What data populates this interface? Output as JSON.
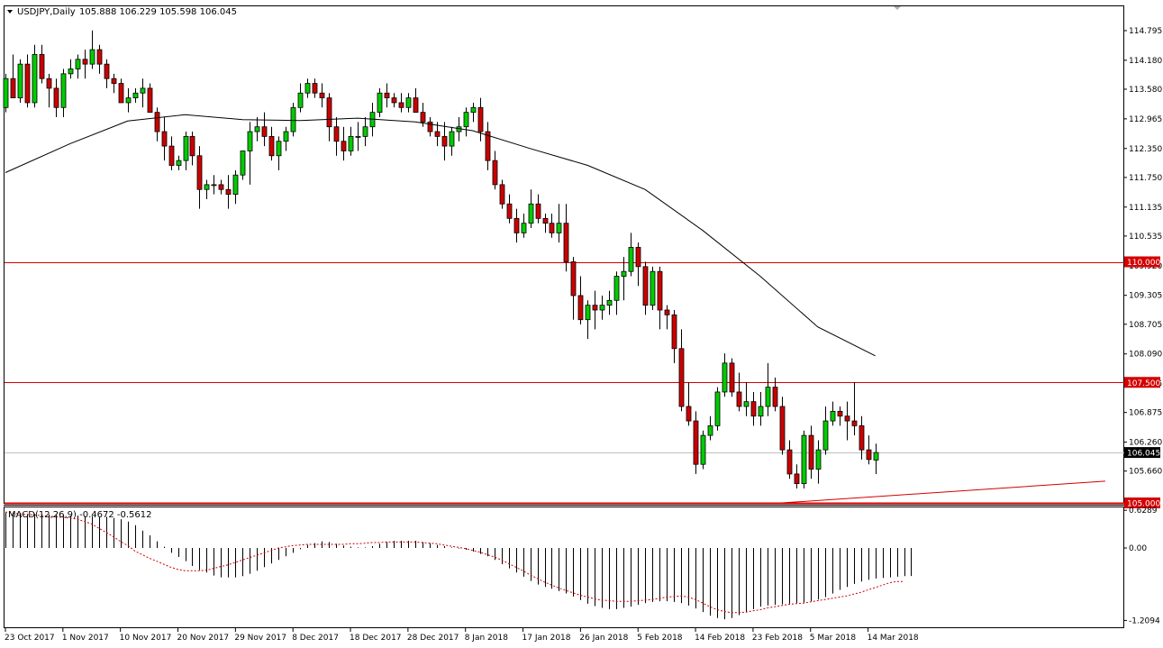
{
  "header": {
    "symbol_label": "USDJPY,Daily",
    "ohlc_values": "105.888 106.229 105.598 106.045"
  },
  "macd_header": {
    "label": "MACD(12,26,9) -0.4672 -0.5612"
  },
  "colors": {
    "up": "#00cc00",
    "down": "#cc0000",
    "outline": "#000000",
    "ma": "#000000",
    "hline": "#d40000",
    "trendline": "#d40000",
    "price_marker": "#000000",
    "signal": "#cc0000"
  },
  "chart_data": [
    {
      "type": "candlestick",
      "title": "USDJPY,Daily",
      "y_range": [
        105.0,
        115.0
      ],
      "y_tick_labels": [
        "114.795",
        "114.180",
        "113.580",
        "112.965",
        "112.350",
        "111.750",
        "111.135",
        "110.535",
        "109.920",
        "109.305",
        "108.705",
        "108.090",
        "107.475",
        "106.875",
        "106.260",
        "105.660"
      ],
      "x_tick_labels": [
        "23 Oct 2017",
        "1 Nov 2017",
        "10 Nov 2017",
        "20 Nov 2017",
        "29 Nov 2017",
        "8 Dec 2017",
        "18 Dec 2017",
        "28 Dec 2017",
        "8 Jan 2018",
        "17 Jan 2018",
        "26 Jan 2018",
        "5 Feb 2018",
        "14 Feb 2018",
        "23 Feb 2018",
        "5 Mar 2018",
        "14 Mar 2018"
      ],
      "x_tick_index": [
        0,
        8,
        16,
        24,
        32,
        40,
        48,
        56,
        64,
        72,
        80,
        88,
        96,
        104,
        112,
        120
      ],
      "ohlc": [
        [
          113.2,
          113.9,
          113.1,
          113.8
        ],
        [
          113.8,
          114.3,
          113.4,
          113.4
        ],
        [
          113.4,
          114.2,
          113.3,
          114.1
        ],
        [
          114.1,
          114.3,
          113.2,
          113.3
        ],
        [
          113.3,
          114.5,
          113.2,
          114.3
        ],
        [
          114.3,
          114.5,
          113.7,
          113.8
        ],
        [
          113.8,
          113.9,
          113.2,
          113.6
        ],
        [
          113.6,
          113.8,
          113.0,
          113.2
        ],
        [
          113.2,
          114.0,
          113.0,
          113.9
        ],
        [
          113.9,
          114.2,
          113.8,
          114.0
        ],
        [
          114.0,
          114.3,
          113.8,
          114.2
        ],
        [
          114.2,
          114.4,
          113.8,
          114.1
        ],
        [
          114.1,
          114.8,
          114.0,
          114.4
        ],
        [
          114.4,
          114.5,
          113.9,
          114.1
        ],
        [
          114.1,
          114.2,
          113.6,
          113.8
        ],
        [
          113.8,
          113.9,
          113.5,
          113.7
        ],
        [
          113.7,
          113.8,
          113.3,
          113.3
        ],
        [
          113.3,
          113.6,
          113.1,
          113.4
        ],
        [
          113.4,
          113.6,
          113.3,
          113.5
        ],
        [
          113.5,
          113.8,
          113.2,
          113.6
        ],
        [
          113.6,
          113.7,
          113.1,
          113.1
        ],
        [
          113.1,
          113.2,
          112.5,
          112.7
        ],
        [
          112.7,
          113.0,
          112.1,
          112.4
        ],
        [
          112.4,
          112.6,
          111.9,
          112.0
        ],
        [
          112.0,
          112.2,
          111.9,
          112.1
        ],
        [
          112.1,
          112.7,
          111.9,
          112.6
        ],
        [
          112.6,
          112.7,
          112.0,
          112.2
        ],
        [
          112.2,
          112.4,
          111.1,
          111.5
        ],
        [
          111.5,
          111.7,
          111.3,
          111.6
        ],
        [
          111.6,
          111.8,
          111.4,
          111.6
        ],
        [
          111.6,
          111.7,
          111.4,
          111.5
        ],
        [
          111.5,
          111.8,
          111.1,
          111.4
        ],
        [
          111.4,
          111.9,
          111.2,
          111.8
        ],
        [
          111.8,
          112.3,
          111.7,
          112.3
        ],
        [
          112.3,
          112.9,
          111.6,
          112.7
        ],
        [
          112.7,
          113.0,
          112.5,
          112.8
        ],
        [
          112.8,
          113.1,
          112.4,
          112.6
        ],
        [
          112.6,
          112.8,
          112.1,
          112.2
        ],
        [
          112.2,
          112.6,
          111.9,
          112.5
        ],
        [
          112.5,
          112.8,
          112.3,
          112.7
        ],
        [
          112.7,
          113.3,
          112.6,
          113.2
        ],
        [
          113.2,
          113.7,
          113.1,
          113.5
        ],
        [
          113.5,
          113.8,
          113.4,
          113.7
        ],
        [
          113.7,
          113.8,
          113.4,
          113.5
        ],
        [
          113.5,
          113.7,
          113.2,
          113.4
        ],
        [
          113.4,
          113.5,
          112.5,
          112.8
        ],
        [
          112.8,
          113.0,
          112.2,
          112.5
        ],
        [
          112.5,
          112.8,
          112.1,
          112.3
        ],
        [
          112.3,
          112.8,
          112.2,
          112.6
        ],
        [
          112.6,
          112.9,
          112.3,
          112.6
        ],
        [
          112.6,
          113.0,
          112.4,
          112.8
        ],
        [
          112.8,
          113.3,
          112.6,
          113.1
        ],
        [
          113.1,
          113.6,
          113.0,
          113.5
        ],
        [
          113.5,
          113.7,
          113.2,
          113.4
        ],
        [
          113.4,
          113.5,
          113.2,
          113.3
        ],
        [
          113.3,
          113.5,
          113.1,
          113.2
        ],
        [
          113.2,
          113.5,
          113.1,
          113.4
        ],
        [
          113.4,
          113.6,
          113.1,
          113.1
        ],
        [
          113.1,
          113.3,
          112.8,
          112.9
        ],
        [
          112.9,
          113.0,
          112.6,
          112.7
        ],
        [
          112.7,
          112.9,
          112.4,
          112.6
        ],
        [
          112.6,
          112.9,
          112.1,
          112.4
        ],
        [
          112.4,
          112.8,
          112.2,
          112.7
        ],
        [
          112.7,
          113.0,
          112.5,
          112.8
        ],
        [
          112.8,
          113.2,
          112.6,
          113.1
        ],
        [
          113.1,
          113.3,
          112.9,
          113.2
        ],
        [
          113.2,
          113.4,
          112.5,
          112.7
        ],
        [
          112.7,
          112.9,
          111.9,
          112.1
        ],
        [
          112.1,
          112.3,
          111.5,
          111.6
        ],
        [
          111.6,
          111.7,
          111.1,
          111.2
        ],
        [
          111.2,
          111.4,
          110.8,
          110.9
        ],
        [
          110.9,
          111.1,
          110.4,
          110.6
        ],
        [
          110.6,
          111.0,
          110.5,
          110.8
        ],
        [
          110.8,
          111.5,
          110.7,
          111.2
        ],
        [
          111.2,
          111.4,
          110.8,
          110.9
        ],
        [
          110.9,
          111.0,
          110.6,
          110.8
        ],
        [
          110.8,
          111.0,
          110.5,
          110.6
        ],
        [
          110.6,
          111.2,
          110.4,
          110.8
        ],
        [
          110.8,
          111.2,
          109.8,
          110.0
        ],
        [
          110.0,
          110.1,
          108.8,
          109.3
        ],
        [
          109.3,
          109.7,
          108.7,
          108.8
        ],
        [
          108.8,
          109.2,
          108.4,
          109.1
        ],
        [
          109.1,
          109.4,
          108.6,
          109.0
        ],
        [
          109.0,
          109.3,
          108.8,
          109.1
        ],
        [
          109.1,
          109.4,
          108.9,
          109.2
        ],
        [
          109.2,
          109.8,
          108.9,
          109.7
        ],
        [
          109.7,
          110.1,
          109.2,
          109.8
        ],
        [
          109.8,
          110.6,
          109.7,
          110.3
        ],
        [
          110.3,
          110.4,
          109.5,
          109.9
        ],
        [
          109.9,
          110.0,
          108.9,
          109.1
        ],
        [
          109.1,
          109.9,
          109.0,
          109.8
        ],
        [
          109.8,
          109.9,
          108.6,
          109.0
        ],
        [
          109.0,
          109.1,
          108.6,
          108.9
        ],
        [
          108.9,
          109.0,
          107.9,
          108.2
        ],
        [
          108.2,
          108.6,
          106.9,
          107.0
        ],
        [
          107.0,
          107.5,
          106.6,
          106.7
        ],
        [
          106.7,
          106.9,
          105.6,
          105.8
        ],
        [
          105.8,
          106.5,
          105.7,
          106.4
        ],
        [
          106.4,
          106.8,
          106.3,
          106.6
        ],
        [
          106.6,
          107.4,
          106.5,
          107.3
        ],
        [
          107.3,
          108.1,
          107.2,
          107.9
        ],
        [
          107.9,
          108.0,
          107.2,
          107.3
        ],
        [
          107.3,
          107.7,
          106.9,
          107.0
        ],
        [
          107.0,
          107.5,
          106.8,
          107.1
        ],
        [
          107.1,
          107.3,
          106.6,
          106.8
        ],
        [
          106.8,
          107.3,
          106.6,
          107.0
        ],
        [
          107.0,
          107.9,
          106.8,
          107.4
        ],
        [
          107.4,
          107.6,
          106.9,
          107.0
        ],
        [
          107.0,
          107.2,
          106.0,
          106.1
        ],
        [
          106.1,
          106.3,
          105.5,
          105.6
        ],
        [
          105.6,
          105.8,
          105.3,
          105.4
        ],
        [
          105.4,
          106.5,
          105.3,
          106.4
        ],
        [
          106.4,
          106.6,
          105.5,
          105.7
        ],
        [
          105.7,
          106.3,
          105.4,
          106.1
        ],
        [
          106.1,
          107.0,
          106.0,
          106.7
        ],
        [
          106.7,
          107.1,
          106.6,
          106.9
        ],
        [
          106.9,
          107.0,
          106.6,
          106.8
        ],
        [
          106.8,
          107.1,
          106.3,
          106.7
        ],
        [
          106.7,
          107.5,
          106.4,
          106.6
        ],
        [
          106.6,
          106.8,
          105.9,
          106.1
        ],
        [
          106.1,
          106.4,
          105.8,
          105.9
        ],
        [
          105.888,
          106.229,
          105.598,
          106.045
        ]
      ],
      "moving_average": [
        [
          0,
          111.85
        ],
        [
          9,
          112.45
        ],
        [
          17,
          112.92
        ],
        [
          25,
          113.05
        ],
        [
          33,
          112.95
        ],
        [
          41,
          112.93
        ],
        [
          49,
          112.98
        ],
        [
          57,
          112.9
        ],
        [
          65,
          112.72
        ],
        [
          73,
          112.35
        ],
        [
          81,
          112.0
        ],
        [
          89,
          111.5
        ],
        [
          97,
          110.65
        ],
        [
          105,
          109.7
        ],
        [
          113,
          108.65
        ],
        [
          121,
          108.05
        ]
      ],
      "horizontal_lines": [
        {
          "value": 110.0,
          "label": "110.000"
        },
        {
          "value": 107.5,
          "label": "107.500"
        },
        {
          "value": 105.0,
          "label": "105.000"
        }
      ],
      "current_price": {
        "value": 106.045,
        "label": "106.045"
      },
      "trendline": [
        [
          108,
          105.0
        ],
        [
          153,
          105.45
        ]
      ]
    },
    {
      "type": "bar",
      "title": "MACD(12,26,9) -0.4672 -0.5612",
      "y_range": [
        -1.2094,
        0.6289
      ],
      "y_tick_labels": [
        "0.6289",
        "0.00",
        "-1.2094"
      ],
      "macd": [
        0.59,
        0.58,
        0.58,
        0.57,
        0.57,
        0.56,
        0.56,
        0.55,
        0.55,
        0.54,
        0.54,
        0.53,
        0.53,
        0.52,
        0.52,
        0.5,
        0.48,
        0.44,
        0.38,
        0.29,
        0.21,
        0.11,
        0.02,
        -0.08,
        -0.15,
        -0.22,
        -0.3,
        -0.37,
        -0.41,
        -0.46,
        -0.49,
        -0.49,
        -0.49,
        -0.47,
        -0.43,
        -0.38,
        -0.32,
        -0.26,
        -0.2,
        -0.14,
        -0.08,
        -0.02,
        0.05,
        0.08,
        0.11,
        0.1,
        0.07,
        0.04,
        0.02,
        0.01,
        0.01,
        0.03,
        0.07,
        0.1,
        0.12,
        0.12,
        0.12,
        0.12,
        0.1,
        0.08,
        0.05,
        0.03,
        0.01,
        -0.01,
        -0.03,
        -0.06,
        -0.1,
        -0.14,
        -0.2,
        -0.27,
        -0.34,
        -0.41,
        -0.48,
        -0.55,
        -0.61,
        -0.65,
        -0.68,
        -0.72,
        -0.76,
        -0.81,
        -0.87,
        -0.93,
        -0.97,
        -1.0,
        -1.02,
        -1.02,
        -1.0,
        -0.98,
        -0.95,
        -0.92,
        -0.9,
        -0.89,
        -0.89,
        -0.9,
        -0.92,
        -0.96,
        -1.01,
        -1.07,
        -1.13,
        -1.17,
        -1.19,
        -1.17,
        -1.12,
        -1.07,
        -1.02,
        -0.98,
        -0.96,
        -0.95,
        -0.94,
        -0.93,
        -0.92,
        -0.91,
        -0.89,
        -0.86,
        -0.82,
        -0.76,
        -0.7,
        -0.65,
        -0.6,
        -0.56,
        -0.53,
        -0.51,
        -0.5,
        -0.49,
        -0.48,
        -0.47,
        -0.4672
      ],
      "signal": [
        0.6,
        0.58,
        0.57,
        0.56,
        0.55,
        0.54,
        0.53,
        0.52,
        0.51,
        0.5,
        0.48,
        0.44,
        0.4,
        0.33,
        0.26,
        0.19,
        0.11,
        0.04,
        -0.05,
        -0.11,
        -0.17,
        -0.22,
        -0.27,
        -0.32,
        -0.36,
        -0.38,
        -0.38,
        -0.38,
        -0.37,
        -0.34,
        -0.31,
        -0.28,
        -0.24,
        -0.2,
        -0.16,
        -0.12,
        -0.08,
        -0.04,
        0.0,
        0.02,
        0.04,
        0.05,
        0.06,
        0.06,
        0.06,
        0.06,
        0.06,
        0.06,
        0.07,
        0.07,
        0.08,
        0.09,
        0.09,
        0.1,
        0.1,
        0.1,
        0.1,
        0.1,
        0.09,
        0.08,
        0.07,
        0.05,
        0.03,
        0.01,
        -0.01,
        -0.04,
        -0.07,
        -0.11,
        -0.15,
        -0.2,
        -0.26,
        -0.32,
        -0.38,
        -0.45,
        -0.51,
        -0.57,
        -0.62,
        -0.67,
        -0.71,
        -0.75,
        -0.79,
        -0.82,
        -0.85,
        -0.87,
        -0.88,
        -0.89,
        -0.89,
        -0.89,
        -0.88,
        -0.87,
        -0.86,
        -0.84,
        -0.82,
        -0.81,
        -0.8,
        -0.82,
        -0.86,
        -0.92,
        -0.98,
        -1.03,
        -1.06,
        -1.08,
        -1.08,
        -1.07,
        -1.05,
        -1.03,
        -1.0,
        -0.98,
        -0.96,
        -0.94,
        -0.93,
        -0.92,
        -0.9,
        -0.88,
        -0.86,
        -0.84,
        -0.82,
        -0.8,
        -0.77,
        -0.74,
        -0.7,
        -0.66,
        -0.62,
        -0.58,
        -0.56,
        -0.5612
      ]
    }
  ]
}
